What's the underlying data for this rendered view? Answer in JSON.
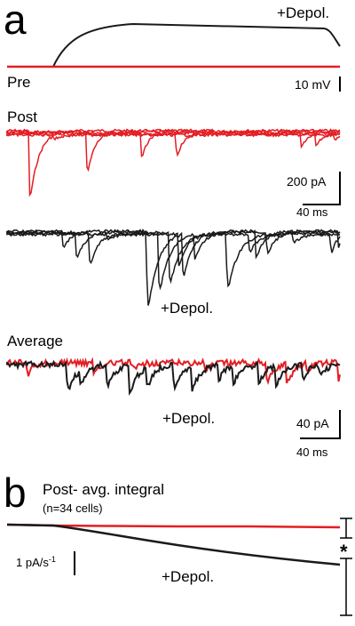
{
  "panel_a": {
    "letter": "a",
    "depol_label": "+Depol.",
    "pre_label": "Pre",
    "pre_scale": "10 mV",
    "post_label": "Post",
    "post_scale_y": "200 pA",
    "post_scale_x": "40 ms",
    "post_depol_label": "+Depol.",
    "average_label": "Average",
    "average_depol_label": "+Depol.",
    "average_scale_y": "40 pA",
    "average_scale_x": "40 ms"
  },
  "panel_b": {
    "letter": "b",
    "title": "Post- avg. integral",
    "n_open": "(",
    "n_text": "n=34 cells",
    "n_close": ")",
    "scale_label": "1 pA/s",
    "scale_exp": "-1",
    "depol_label": "+Depol.",
    "significance": "*"
  },
  "colors": {
    "control": "#e31e24",
    "depol": "#1a1a1a"
  }
}
